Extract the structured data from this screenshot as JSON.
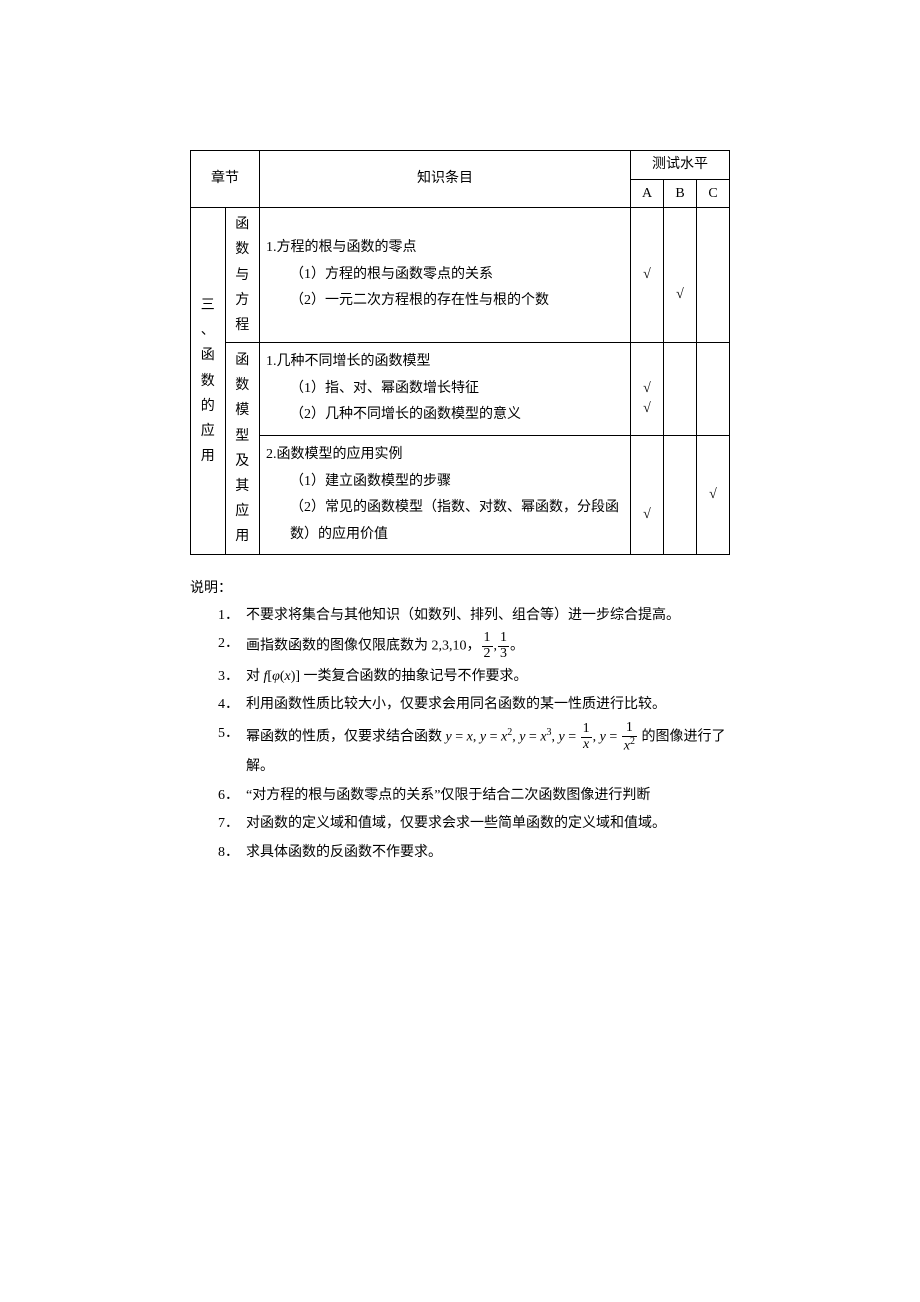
{
  "table": {
    "header": {
      "chapter_label": "章节",
      "topic_label": "知识条目",
      "level_label": "测试水平",
      "A": "A",
      "B": "B",
      "C": "C"
    },
    "chapter_text": "三、函数的应用",
    "sub1_text": "函数与方程",
    "sub2_text": "函数模型及其应用",
    "row1": {
      "t1": "1.方程的根与函数的零点",
      "t2": "（1）方程的根与函数零点的关系",
      "t3": "（2）一元二次方程根的存在性与根的个数",
      "a": "√",
      "b": "√"
    },
    "row2": {
      "t1": "1.几种不同增长的函数模型",
      "t2": "（1）指、对、幂函数增长特征",
      "t3": "（2）几种不同增长的函数模型的意义",
      "a": "√",
      "a2": "√"
    },
    "row3": {
      "t1": "2.函数模型的应用实例",
      "t2": "（1）建立函数模型的步骤",
      "t3": "（2）常见的函数模型（指数、对数、幂函数，分段函数）的应用价值",
      "a": "√",
      "c": "√"
    }
  },
  "notes": {
    "title": "说明：",
    "items": [
      {
        "n": "1．",
        "text": "不要求将集合与其他知识（如数列、排列、组合等）进一步综合提高。"
      },
      {
        "n": "2．",
        "pre": "画指数函数的图像仅限底数为 2,3,10，",
        "post": "。",
        "has_fracs": true
      },
      {
        "n": "3．",
        "pre": "对",
        "post": "一类复合函数的抽象记号不作要求。",
        "has_comp": true
      },
      {
        "n": "4．",
        "text": "利用函数性质比较大小，仅要求会用同名函数的某一性质进行比较。"
      },
      {
        "n": "5．",
        "pre": "幂函数的性质，仅要求结合函数",
        "post": "的图像进行了解。",
        "has_power": true
      },
      {
        "n": "6．",
        "text": "“对方程的根与函数零点的关系”仅限于结合二次函数图像进行判断"
      },
      {
        "n": "7．",
        "text": "对函数的定义域和值域，仅要求会求一些简单函数的定义域和值域。"
      },
      {
        "n": "8．",
        "text": "求具体函数的反函数不作要求。"
      }
    ]
  }
}
